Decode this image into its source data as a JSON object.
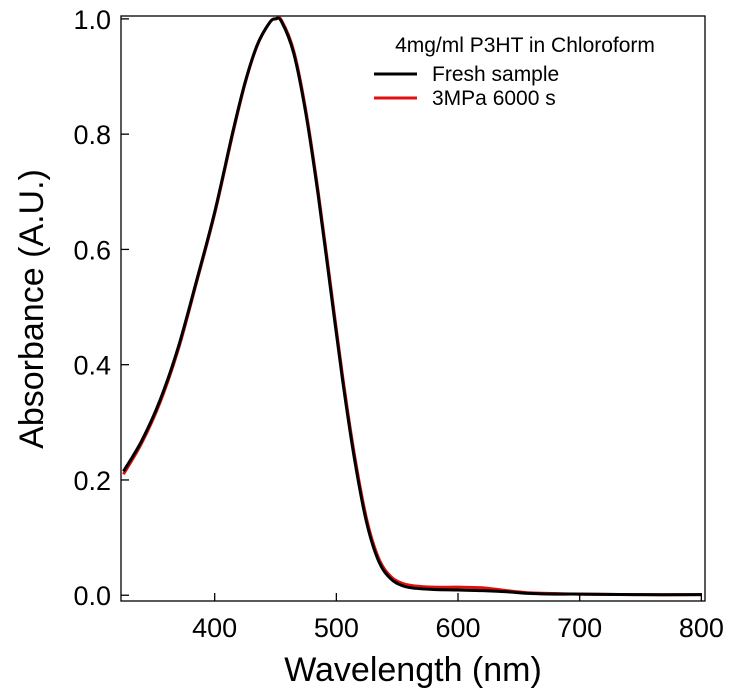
{
  "chart_data": {
    "type": "line",
    "title": "",
    "xlabel": "Wavelength (nm)",
    "ylabel": "Absorbance (A.U.)",
    "xlim": [
      323,
      803
    ],
    "ylim": [
      -0.01,
      1.005
    ],
    "xticks": [
      400,
      500,
      600,
      700,
      800
    ],
    "xtick_labels": [
      "400",
      "500",
      "600",
      "700",
      "800"
    ],
    "yticks": [
      0.0,
      0.2,
      0.4,
      0.6,
      0.8,
      1.0
    ],
    "ytick_labels": [
      "0.0",
      "0.2",
      "0.4",
      "0.6",
      "0.8",
      "1.0"
    ],
    "grid": false,
    "legend": {
      "title": "4mg/ml P3HT in Chloroform",
      "placement": "top-right"
    },
    "series": [
      {
        "name": "Fresh sample",
        "color": "#000000",
        "x": [
          325,
          340,
          355,
          370,
          385,
          400,
          415,
          425,
          435,
          445,
          450,
          455,
          465,
          475,
          485,
          495,
          505,
          515,
          525,
          535,
          545,
          555,
          565,
          580,
          600,
          620,
          640,
          660,
          680,
          700,
          750,
          800
        ],
        "y": [
          0.215,
          0.268,
          0.338,
          0.43,
          0.545,
          0.665,
          0.805,
          0.89,
          0.955,
          0.993,
          1.0,
          0.995,
          0.94,
          0.835,
          0.695,
          0.535,
          0.375,
          0.235,
          0.125,
          0.058,
          0.028,
          0.016,
          0.012,
          0.01,
          0.009,
          0.008,
          0.006,
          0.003,
          0.002,
          0.002,
          0.001,
          0.001
        ]
      },
      {
        "name": "3MPa 6000 s",
        "color": "#e01010",
        "x": [
          325,
          340,
          355,
          370,
          385,
          400,
          415,
          425,
          435,
          445,
          450,
          455,
          465,
          475,
          485,
          495,
          505,
          515,
          525,
          535,
          545,
          555,
          565,
          580,
          600,
          620,
          640,
          660,
          680,
          700,
          750,
          800
        ],
        "y": [
          0.21,
          0.264,
          0.334,
          0.426,
          0.542,
          0.662,
          0.802,
          0.888,
          0.954,
          0.993,
          1.0,
          0.997,
          0.944,
          0.84,
          0.701,
          0.542,
          0.382,
          0.242,
          0.131,
          0.063,
          0.032,
          0.02,
          0.016,
          0.014,
          0.014,
          0.013,
          0.008,
          0.004,
          0.003,
          0.002,
          0.001,
          0.001
        ]
      }
    ]
  }
}
